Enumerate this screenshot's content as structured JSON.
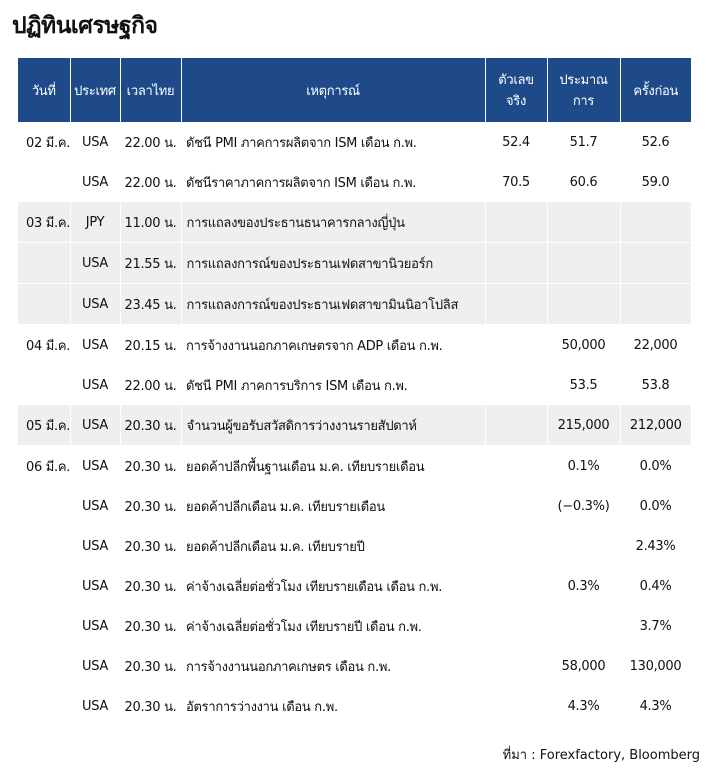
{
  "title": "ปฏิทินเศรษฐกิจ",
  "table": {
    "header": [
      "วันที่",
      "ประเทศ",
      "เวลาไทย",
      "เหตุการณ์",
      "ตัวเลขจริง",
      "ประมาณการ",
      "ครั้งก่อน"
    ],
    "groups": [
      {
        "date": "02 มี.ค.",
        "rows": [
          {
            "country": "USA",
            "time": "22.00 น.",
            "event": "ดัชนี PMI ภาคการผลิตจาก ISM เดือน ก.พ.",
            "actual": "52.4",
            "forecast": "51.7",
            "previous": "52.6"
          },
          {
            "country": "USA",
            "time": "22.00 น.",
            "event": "ดัชนีราคาภาคการผลิตจาก ISM เดือน ก.พ.",
            "actual": "70.5",
            "forecast": "60.6",
            "previous": "59.0"
          }
        ]
      },
      {
        "date": "03 มี.ค.",
        "rows": [
          {
            "country": "JPY",
            "time": "11.00 น.",
            "event": "การแถลงของประธานธนาคารกลางญี่ปุ่น"
          },
          {
            "country": "USA",
            "time": "21.55 น.",
            "event": "การแถลงการณ์ของประธานเฟดสาขานิวยอร์ก"
          },
          {
            "country": "USA",
            "time": "23.45 น.",
            "event": "การแถลงการณ์ของประธานเฟดสาขามินนิอาโปลิส"
          }
        ]
      },
      {
        "date": "04 มี.ค.",
        "rows": [
          {
            "country": "USA",
            "time": "20.15 น.",
            "event": "การจ้างงานนอกภาคเกษตรจาก ADP เดือน ก.พ.",
            "forecast": "50,000",
            "previous": "22,000"
          },
          {
            "country": "USA",
            "time": "22.00 น.",
            "event": "ดัชนี PMI ภาคการบริการ ISM เดือน ก.พ.",
            "forecast": "53.5",
            "previous": "53.8"
          }
        ]
      },
      {
        "date": "05 มี.ค.",
        "rows": [
          {
            "country": "USA",
            "time": "20.30 น.",
            "event": "จำนวนผู้ขอรับสวัสดิการว่างงานรายสัปดาห์",
            "forecast": "215,000",
            "previous": "212,000"
          }
        ]
      },
      {
        "date": "06 มี.ค.",
        "rows": [
          {
            "country": "USA",
            "time": "20.30 น.",
            "event": "ยอดค้าปลีกพื้นฐานเดือน ม.ค. เทียบรายเดือน",
            "forecast": "0.1%",
            "previous": "0.0%"
          },
          {
            "country": "USA",
            "time": "20.30 น.",
            "event": "ยอดค้าปลีกเดือน ม.ค. เทียบรายเดือน",
            "forecast": "(−0.3%)",
            "previous": "0.0%"
          },
          {
            "country": "USA",
            "time": "20.30 น.",
            "event": "ยอดค้าปลีกเดือน ม.ค. เทียบรายปี",
            "previous": "2.43%"
          },
          {
            "country": "USA",
            "time": "20.30 น.",
            "event": "ค่าจ้างเฉลี่ยต่อชั่วโมง เทียบรายเดือน เดือน ก.พ.",
            "forecast": "0.3%",
            "previous": "0.4%"
          },
          {
            "country": "USA",
            "time": "20.30 น.",
            "event": "ค่าจ้างเฉลี่ยต่อชั่วโมง เทียบรายปี เดือน ก.พ.",
            "previous": "3.7%"
          },
          {
            "country": "USA",
            "time": "20.30 น.",
            "event": "การจ้างงานนอกภาคเกษตร เดือน ก.พ.",
            "forecast": "58,000",
            "previous": "130,000"
          },
          {
            "country": "USA",
            "time": "20.30 น.",
            "event": "อัตราการว่างงาน เดือน ก.พ.",
            "forecast": "4.3%",
            "previous": "4.3%"
          }
        ]
      }
    ]
  },
  "source": "ที่มา : Forexfactory, Bloomberg"
}
